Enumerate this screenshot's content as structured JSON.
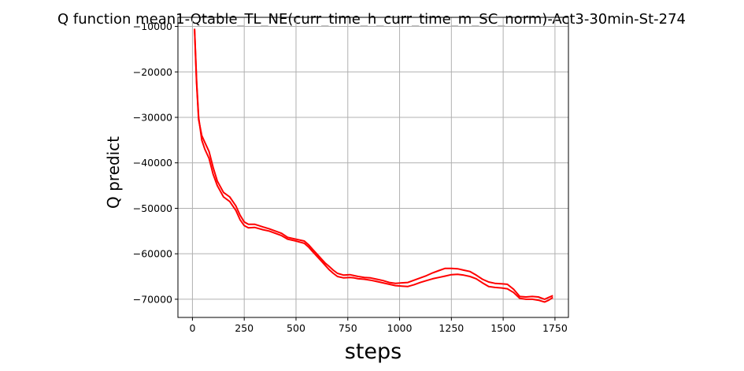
{
  "chart_data": {
    "type": "line",
    "title": "Q function mean1-Qtable_TL_NE(curr_time_h_curr_time_m_SC_norm)-Act3-30min-St-274",
    "xlabel": "steps",
    "ylabel": "Q predict",
    "xlim": [
      -70,
      1815
    ],
    "ylim": [
      -74000,
      -8000
    ],
    "xticks": [
      0,
      250,
      500,
      750,
      1000,
      1250,
      1500,
      1750
    ],
    "xtick_labels": [
      "0",
      "250",
      "500",
      "750",
      "1000",
      "1250",
      "1500",
      "1750"
    ],
    "yticks": [
      -70000,
      -60000,
      -50000,
      -40000,
      -30000,
      -20000,
      -10000
    ],
    "ytick_labels": [
      "−70000",
      "−60000",
      "−50000",
      "−40000",
      "−30000",
      "−20000",
      "−10000"
    ],
    "grid": true,
    "series": [
      {
        "color": "#ff0000",
        "x": [
          10,
          20,
          30,
          45,
          60,
          80,
          100,
          120,
          150,
          180,
          210,
          230,
          250,
          270,
          300,
          340,
          370,
          400,
          430,
          460,
          500,
          540,
          560,
          580,
          600,
          620,
          640,
          660,
          680,
          700,
          730,
          760,
          780,
          800,
          830,
          860,
          890,
          920,
          950,
          980,
          1010,
          1040,
          1070,
          1100,
          1130,
          1160,
          1190,
          1220,
          1250,
          1280,
          1310,
          1340,
          1370,
          1400,
          1430,
          1460,
          1490,
          1520,
          1550,
          1580,
          1610,
          1640,
          1670,
          1700,
          1720,
          1740
        ],
        "y": [
          -10500,
          -22000,
          -30000,
          -35000,
          -37000,
          -39000,
          -42500,
          -45000,
          -47500,
          -48500,
          -50500,
          -52500,
          -53800,
          -54300,
          -54200,
          -54700,
          -55000,
          -55500,
          -56000,
          -56800,
          -57200,
          -57700,
          -58500,
          -59500,
          -60500,
          -61500,
          -62500,
          -63500,
          -64300,
          -65000,
          -65300,
          -65200,
          -65300,
          -65500,
          -65600,
          -65800,
          -66100,
          -66400,
          -66700,
          -67000,
          -67100,
          -67200,
          -66800,
          -66300,
          -65900,
          -65500,
          -65200,
          -64900,
          -64600,
          -64500,
          -64700,
          -65000,
          -65500,
          -66400,
          -67200,
          -67400,
          -67500,
          -67700,
          -68500,
          -69800,
          -70000,
          -70000,
          -70200,
          -70600,
          -70200,
          -69600
        ]
      },
      {
        "color": "#ff0000",
        "x": [
          10,
          20,
          30,
          45,
          60,
          80,
          100,
          120,
          150,
          180,
          210,
          230,
          250,
          270,
          300,
          340,
          370,
          400,
          430,
          460,
          500,
          540,
          560,
          580,
          600,
          620,
          640,
          660,
          680,
          700,
          730,
          760,
          780,
          800,
          830,
          860,
          890,
          920,
          950,
          980,
          1010,
          1040,
          1070,
          1100,
          1130,
          1160,
          1190,
          1220,
          1250,
          1280,
          1310,
          1340,
          1370,
          1400,
          1430,
          1460,
          1490,
          1520,
          1550,
          1580,
          1610,
          1640,
          1670,
          1700,
          1720,
          1740
        ],
        "y": [
          -10700,
          -22500,
          -30500,
          -34000,
          -35500,
          -37500,
          -41000,
          -44000,
          -46500,
          -47500,
          -49500,
          -51500,
          -53000,
          -53500,
          -53500,
          -54100,
          -54500,
          -55000,
          -55500,
          -56400,
          -56800,
          -57200,
          -58000,
          -59000,
          -60000,
          -61000,
          -62000,
          -62800,
          -63600,
          -64300,
          -64700,
          -64600,
          -64800,
          -65000,
          -65200,
          -65300,
          -65600,
          -65900,
          -66300,
          -66500,
          -66400,
          -66300,
          -65800,
          -65300,
          -64800,
          -64200,
          -63700,
          -63200,
          -63200,
          -63300,
          -63600,
          -63900,
          -64700,
          -65600,
          -66200,
          -66500,
          -66600,
          -66700,
          -67800,
          -69400,
          -69500,
          -69400,
          -69500,
          -70000,
          -69600,
          -69200
        ]
      }
    ]
  }
}
